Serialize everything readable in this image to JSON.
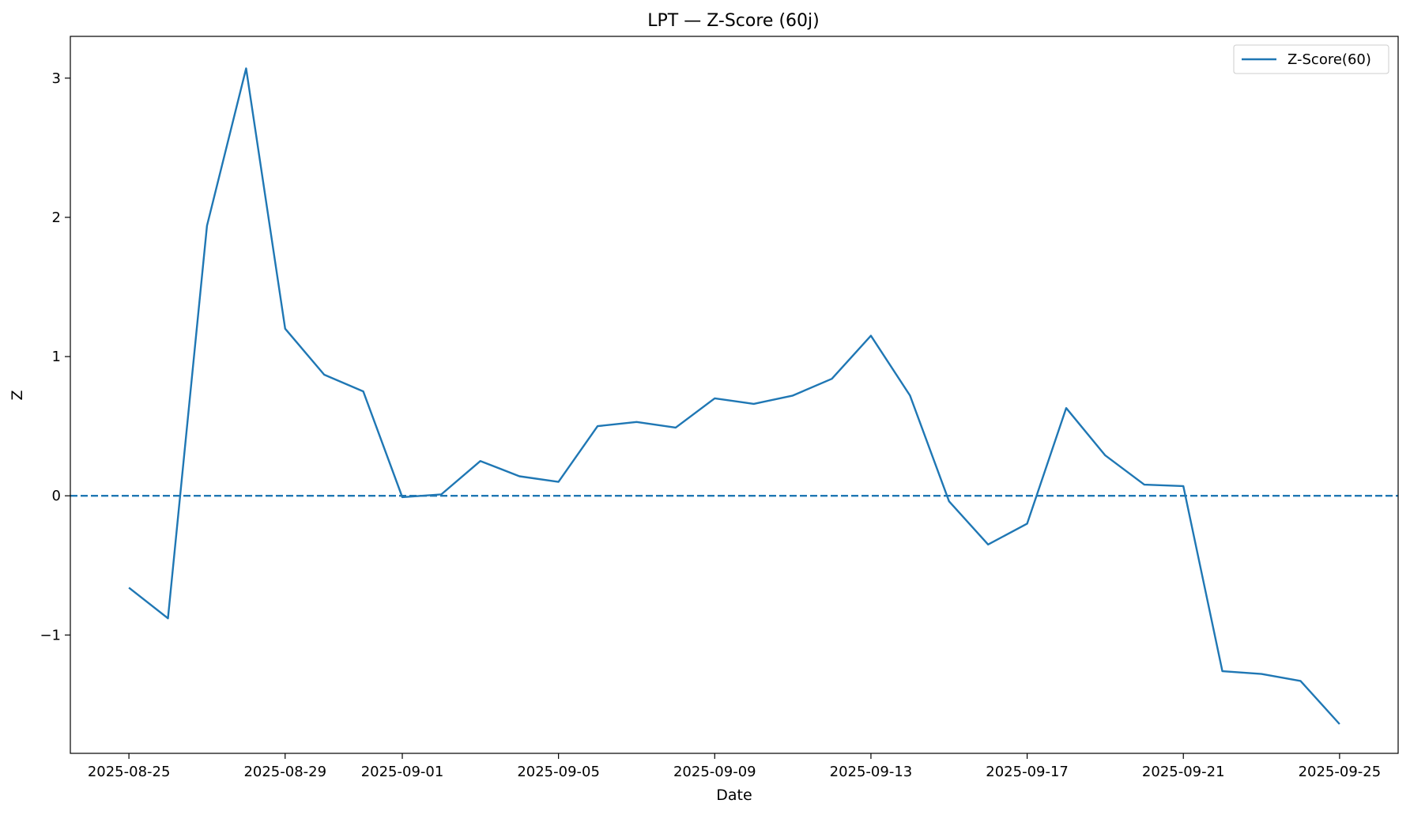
{
  "chart_data": {
    "type": "line",
    "title": "LPT — Z-Score (60j)",
    "xlabel": "Date",
    "ylabel": "Z",
    "xlim": [
      "2025-08-23 12:00",
      "2025-09-26 12:00"
    ],
    "ylim": [
      -1.85,
      3.3
    ],
    "x_ticks": [
      "2025-08-25",
      "2025-08-29",
      "2025-09-01",
      "2025-09-05",
      "2025-09-09",
      "2025-09-13",
      "2025-09-17",
      "2025-09-21",
      "2025-09-25"
    ],
    "y_ticks": [
      3,
      2,
      1,
      0,
      -1
    ],
    "y_tick_labels": [
      "3",
      "2",
      "1",
      "0",
      "−1"
    ],
    "grid": false,
    "legend_position": "top-right",
    "series": [
      {
        "name": "Z-Score(60)",
        "color": "#1f77b4",
        "style": "solid",
        "x": [
          "2025-08-25",
          "2025-08-26",
          "2025-08-27",
          "2025-08-28",
          "2025-08-29",
          "2025-08-30",
          "2025-08-31",
          "2025-09-01",
          "2025-09-02",
          "2025-09-03",
          "2025-09-04",
          "2025-09-05",
          "2025-09-06",
          "2025-09-07",
          "2025-09-08",
          "2025-09-09",
          "2025-09-10",
          "2025-09-11",
          "2025-09-12",
          "2025-09-13",
          "2025-09-14",
          "2025-09-15",
          "2025-09-16",
          "2025-09-17",
          "2025-09-18",
          "2025-09-19",
          "2025-09-20",
          "2025-09-21",
          "2025-09-22",
          "2025-09-23",
          "2025-09-24",
          "2025-09-25"
        ],
        "y": [
          -0.66,
          -0.88,
          1.94,
          3.07,
          1.2,
          0.87,
          0.75,
          -0.01,
          0.01,
          0.25,
          0.14,
          0.1,
          0.5,
          0.53,
          0.49,
          0.7,
          0.66,
          0.72,
          0.84,
          1.15,
          0.72,
          -0.04,
          -0.35,
          -0.2,
          0.63,
          0.29,
          0.08,
          0.07,
          -1.26,
          -1.28,
          -1.33,
          -1.64
        ]
      }
    ],
    "reference_line": {
      "y": 0,
      "color": "#1f77b4",
      "style": "dashed"
    }
  }
}
